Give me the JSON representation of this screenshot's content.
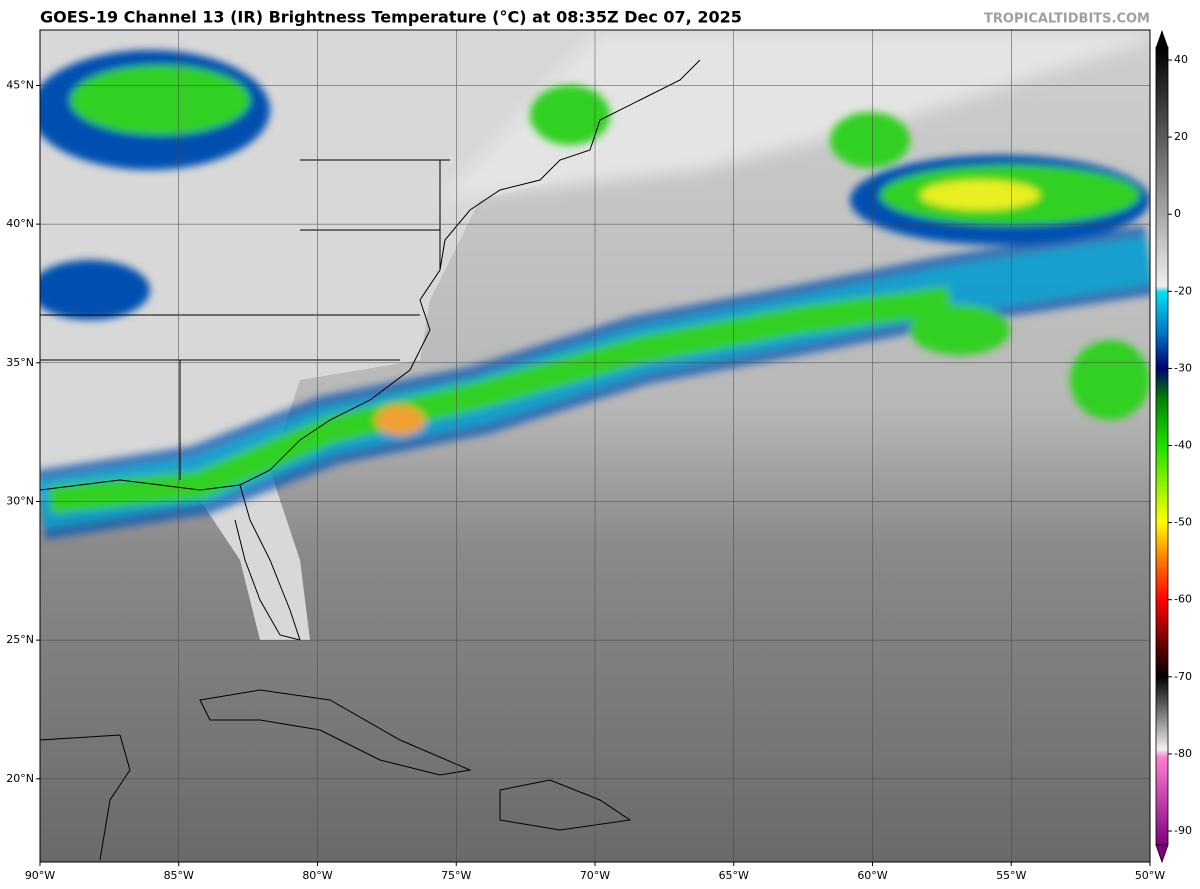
{
  "map": {
    "title": "GOES-19 Channel 13 (IR) Brightness Temperature (°C) at 08:35Z Dec 07, 2025",
    "watermark": "TROPICALTIDBITS.COM",
    "lonlim": [
      -90,
      -50
    ],
    "latlim": [
      17,
      47
    ],
    "lonticks": [
      {
        "value": -90,
        "label": "90°W"
      },
      {
        "value": -85,
        "label": "85°W"
      },
      {
        "value": -80,
        "label": "80°W"
      },
      {
        "value": -75,
        "label": "75°W"
      },
      {
        "value": -70,
        "label": "70°W"
      },
      {
        "value": -65,
        "label": "65°W"
      },
      {
        "value": -60,
        "label": "60°W"
      },
      {
        "value": -55,
        "label": "55°W"
      },
      {
        "value": -50,
        "label": "50°W"
      }
    ],
    "latticks": [
      {
        "value": 20,
        "label": "20°N"
      },
      {
        "value": 25,
        "label": "25°N"
      },
      {
        "value": 30,
        "label": "30°N"
      },
      {
        "value": 35,
        "label": "35°N"
      },
      {
        "value": 40,
        "label": "40°N"
      },
      {
        "value": 45,
        "label": "45°N"
      }
    ],
    "grid": true,
    "colorbar": {
      "ticks": [
        40,
        20,
        0,
        -20,
        -30,
        -40,
        -50,
        -60,
        -70,
        -80,
        -90
      ]
    }
  }
}
